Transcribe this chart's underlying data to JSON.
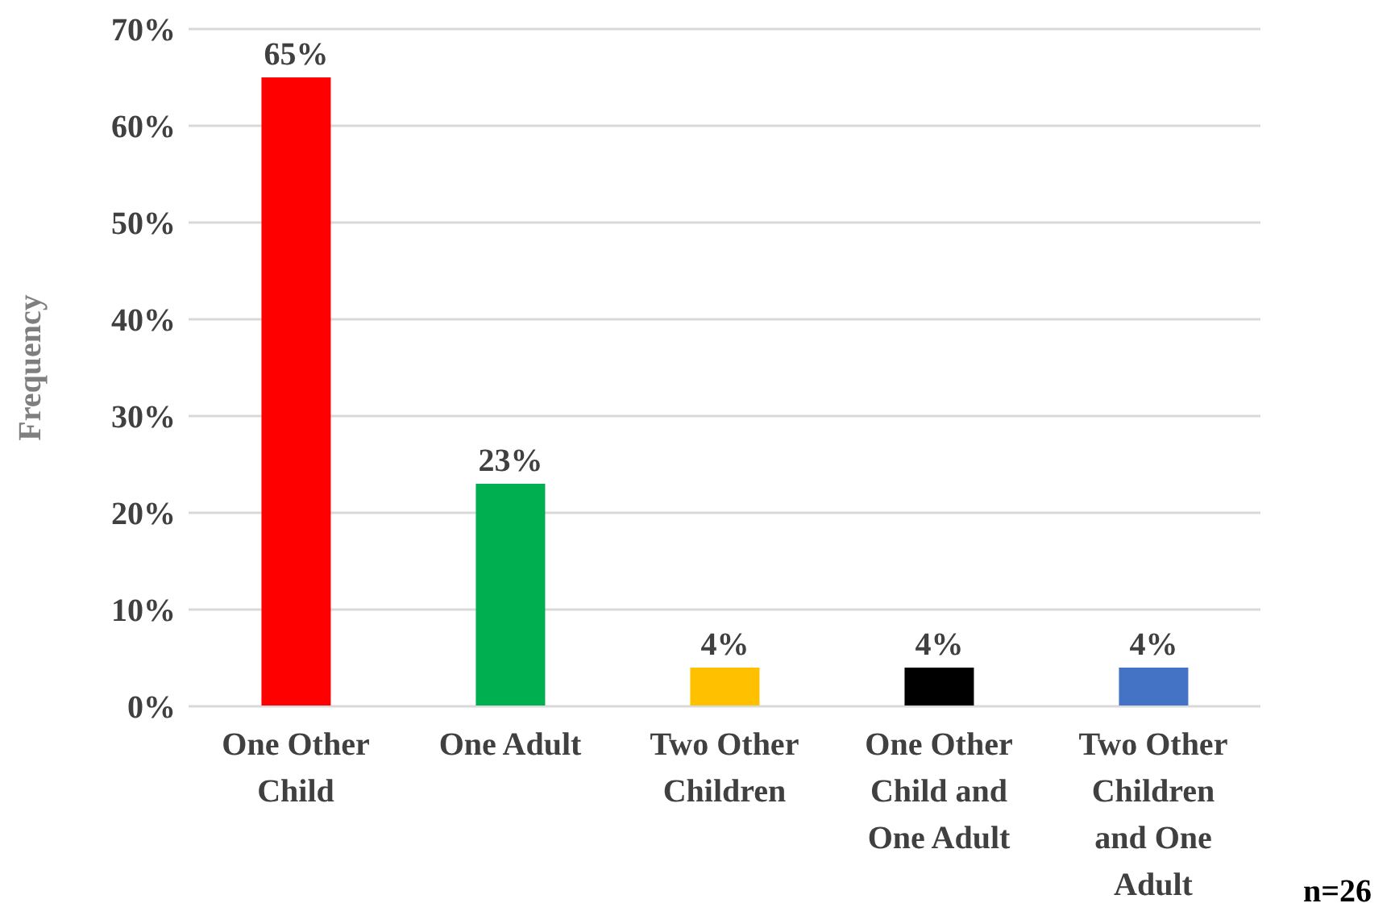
{
  "chart_data": {
    "type": "bar",
    "ylabel": "Frequency",
    "categories": [
      "One Other Child",
      "One Adult",
      "Two Other Children",
      "One Other Child and One Adult",
      "Two Other Children and One Adult"
    ],
    "values": [
      65,
      23,
      4,
      4,
      4
    ],
    "colors": [
      "#ff0000",
      "#00b050",
      "#ffc000",
      "#000000",
      "#4472c4"
    ],
    "value_labels": [
      "65%",
      "23%",
      "4%",
      "4%",
      "4%"
    ],
    "ylim": [
      0,
      70
    ],
    "yticks": [
      {
        "value": 0,
        "label": "0%"
      },
      {
        "value": 10,
        "label": "10%"
      },
      {
        "value": 20,
        "label": "20%"
      },
      {
        "value": 30,
        "label": "30%"
      },
      {
        "value": 40,
        "label": "40%"
      },
      {
        "value": 50,
        "label": "50%"
      },
      {
        "value": 60,
        "label": "60%"
      },
      {
        "value": 70,
        "label": "70%"
      }
    ],
    "grid": "y",
    "legend": false,
    "annotations": [
      "n=26"
    ]
  }
}
